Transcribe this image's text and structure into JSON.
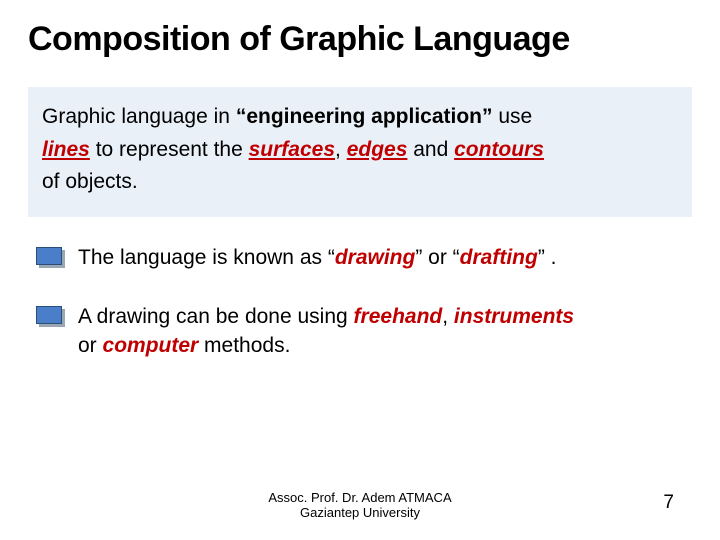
{
  "title": "Composition of Graphic Language",
  "para1": {
    "t1": "Graphic language in  ",
    "bold1": "“engineering application”",
    "t2": "   use ",
    "e1": "lines",
    "t3": "  to represent the ",
    "e2": "surfaces",
    "t4": ",  ",
    "e3": "edges",
    "t5": "  and ",
    "e4": "contours",
    "t6": " of objects."
  },
  "bullet1": {
    "t1": "The language is known as  “",
    "e1": "drawing",
    "t2": "”  or  “",
    "e2": "drafting",
    "t3": "” ."
  },
  "bullet2": {
    "t1": "A drawing can be done using  ",
    "e1": "freehand",
    "t2": ",  ",
    "e2": "instruments",
    "t3": " or  ",
    "e3": "computer",
    "t4": "  methods."
  },
  "footer_line1": "Assoc. Prof. Dr. Adem ATMACA",
  "footer_line2": "Gaziantep University",
  "page_number": "7",
  "colors": {
    "accent": "#c00000",
    "bullet_fill": "#4a7ec8",
    "para_bg": "#eaf0f8"
  }
}
